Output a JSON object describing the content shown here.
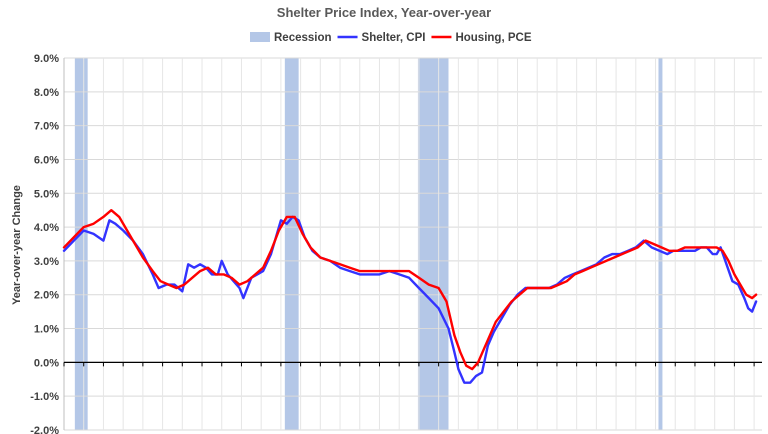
{
  "chart_data": {
    "type": "line",
    "title": "Shelter Price Index, Year-over-year",
    "ylabel": "Year-over-year Change",
    "xlabel": "",
    "ylim": [
      -2.0,
      9.0
    ],
    "yticks": [
      -2.0,
      -1.0,
      0.0,
      1.0,
      2.0,
      3.0,
      4.0,
      5.0,
      6.0,
      7.0,
      8.0,
      9.0
    ],
    "ytick_labels": [
      "-2.0%",
      "-1.0%",
      "0.0%",
      "1.0%",
      "2.0%",
      "3.0%",
      "4.0%",
      "5.0%",
      "6.0%",
      "7.0%",
      "8.0%",
      "9.0%"
    ],
    "xlim": [
      1990,
      2025.4
    ],
    "grid": true,
    "legend_position": "top-center",
    "legend": [
      {
        "name": "Recession",
        "kind": "band",
        "color": "#b4c7e7"
      },
      {
        "name": "Shelter, CPI",
        "kind": "line",
        "color": "#3333ff"
      },
      {
        "name": "Housing, PCE",
        "kind": "line",
        "color": "#ff0000"
      }
    ],
    "recessions": [
      [
        1990.55,
        1991.2
      ],
      [
        2001.2,
        2001.9
      ],
      [
        2007.95,
        2009.5
      ],
      [
        2020.15,
        2020.35
      ]
    ],
    "series": [
      {
        "name": "Shelter, CPI",
        "color": "#3333ff",
        "points": [
          [
            1990.0,
            3.3
          ],
          [
            1990.5,
            3.6
          ],
          [
            1991.0,
            3.9
          ],
          [
            1991.5,
            3.8
          ],
          [
            1992.0,
            3.6
          ],
          [
            1992.3,
            4.2
          ],
          [
            1992.6,
            4.1
          ],
          [
            1993.0,
            3.9
          ],
          [
            1993.5,
            3.6
          ],
          [
            1994.0,
            3.2
          ],
          [
            1994.5,
            2.6
          ],
          [
            1994.8,
            2.2
          ],
          [
            1995.2,
            2.3
          ],
          [
            1995.6,
            2.3
          ],
          [
            1996.0,
            2.1
          ],
          [
            1996.3,
            2.9
          ],
          [
            1996.6,
            2.8
          ],
          [
            1996.9,
            2.9
          ],
          [
            1997.2,
            2.8
          ],
          [
            1997.5,
            2.6
          ],
          [
            1997.8,
            2.6
          ],
          [
            1998.0,
            3.0
          ],
          [
            1998.3,
            2.6
          ],
          [
            1998.6,
            2.4
          ],
          [
            1998.9,
            2.2
          ],
          [
            1999.1,
            1.9
          ],
          [
            1999.5,
            2.5
          ],
          [
            1999.8,
            2.6
          ],
          [
            2000.1,
            2.7
          ],
          [
            2000.5,
            3.2
          ],
          [
            2000.8,
            3.8
          ],
          [
            2001.0,
            4.2
          ],
          [
            2001.3,
            4.1
          ],
          [
            2001.6,
            4.3
          ],
          [
            2001.9,
            4.2
          ],
          [
            2002.2,
            3.7
          ],
          [
            2002.6,
            3.3
          ],
          [
            2003.0,
            3.1
          ],
          [
            2003.5,
            3.0
          ],
          [
            2004.0,
            2.8
          ],
          [
            2004.5,
            2.7
          ],
          [
            2005.0,
            2.6
          ],
          [
            2005.5,
            2.6
          ],
          [
            2006.0,
            2.6
          ],
          [
            2006.5,
            2.7
          ],
          [
            2007.0,
            2.6
          ],
          [
            2007.5,
            2.5
          ],
          [
            2008.0,
            2.2
          ],
          [
            2008.5,
            1.9
          ],
          [
            2009.0,
            1.6
          ],
          [
            2009.5,
            1.0
          ],
          [
            2009.8,
            0.3
          ],
          [
            2010.0,
            -0.2
          ],
          [
            2010.3,
            -0.6
          ],
          [
            2010.6,
            -0.6
          ],
          [
            2010.9,
            -0.4
          ],
          [
            2011.2,
            -0.3
          ],
          [
            2011.5,
            0.5
          ],
          [
            2011.8,
            0.9
          ],
          [
            2012.2,
            1.3
          ],
          [
            2012.6,
            1.7
          ],
          [
            2013.0,
            2.0
          ],
          [
            2013.4,
            2.2
          ],
          [
            2013.8,
            2.2
          ],
          [
            2014.2,
            2.2
          ],
          [
            2014.6,
            2.2
          ],
          [
            2015.0,
            2.3
          ],
          [
            2015.4,
            2.5
          ],
          [
            2015.8,
            2.6
          ],
          [
            2016.2,
            2.7
          ],
          [
            2016.6,
            2.8
          ],
          [
            2017.0,
            2.9
          ],
          [
            2017.4,
            3.1
          ],
          [
            2017.8,
            3.2
          ],
          [
            2018.2,
            3.2
          ],
          [
            2018.6,
            3.3
          ],
          [
            2019.0,
            3.4
          ],
          [
            2019.4,
            3.6
          ],
          [
            2019.8,
            3.4
          ],
          [
            2020.2,
            3.3
          ],
          [
            2020.6,
            3.2
          ],
          [
            2020.9,
            3.3
          ],
          [
            2021.2,
            3.3
          ],
          [
            2021.6,
            3.3
          ],
          [
            2022.0,
            3.3
          ],
          [
            2022.3,
            3.4
          ],
          [
            2022.6,
            3.4
          ],
          [
            2022.9,
            3.2
          ],
          [
            2023.1,
            3.2
          ],
          [
            2023.3,
            3.4
          ],
          [
            2023.6,
            2.9
          ],
          [
            2023.9,
            2.4
          ],
          [
            2024.2,
            2.3
          ],
          [
            2024.5,
            1.9
          ],
          [
            2024.7,
            1.6
          ],
          [
            2024.9,
            1.5
          ],
          [
            2025.1,
            1.8
          ]
        ]
      },
      {
        "name": "Housing, PCE",
        "color": "#ff0000",
        "points": [
          [
            1990.0,
            3.4
          ],
          [
            1990.5,
            3.7
          ],
          [
            1991.0,
            4.0
          ],
          [
            1991.5,
            4.1
          ],
          [
            1992.0,
            4.3
          ],
          [
            1992.4,
            4.5
          ],
          [
            1992.8,
            4.3
          ],
          [
            1993.2,
            3.9
          ],
          [
            1993.6,
            3.5
          ],
          [
            1994.0,
            3.1
          ],
          [
            1994.5,
            2.7
          ],
          [
            1994.9,
            2.4
          ],
          [
            1995.3,
            2.3
          ],
          [
            1995.7,
            2.2
          ],
          [
            1996.1,
            2.3
          ],
          [
            1996.5,
            2.5
          ],
          [
            1996.9,
            2.7
          ],
          [
            1997.3,
            2.8
          ],
          [
            1997.7,
            2.6
          ],
          [
            1998.1,
            2.6
          ],
          [
            1998.5,
            2.5
          ],
          [
            1998.9,
            2.3
          ],
          [
            1999.3,
            2.4
          ],
          [
            1999.7,
            2.6
          ],
          [
            2000.1,
            2.8
          ],
          [
            2000.5,
            3.3
          ],
          [
            2000.9,
            3.9
          ],
          [
            2001.3,
            4.3
          ],
          [
            2001.7,
            4.3
          ],
          [
            2002.1,
            3.8
          ],
          [
            2002.5,
            3.4
          ],
          [
            2003.0,
            3.1
          ],
          [
            2003.5,
            3.0
          ],
          [
            2004.0,
            2.9
          ],
          [
            2004.5,
            2.8
          ],
          [
            2005.0,
            2.7
          ],
          [
            2005.5,
            2.7
          ],
          [
            2006.0,
            2.7
          ],
          [
            2006.5,
            2.7
          ],
          [
            2007.0,
            2.7
          ],
          [
            2007.5,
            2.7
          ],
          [
            2008.0,
            2.5
          ],
          [
            2008.5,
            2.3
          ],
          [
            2009.0,
            2.2
          ],
          [
            2009.4,
            1.8
          ],
          [
            2009.8,
            0.8
          ],
          [
            2010.1,
            0.3
          ],
          [
            2010.4,
            -0.1
          ],
          [
            2010.7,
            -0.2
          ],
          [
            2011.0,
            0.0
          ],
          [
            2011.3,
            0.4
          ],
          [
            2011.6,
            0.8
          ],
          [
            2011.9,
            1.2
          ],
          [
            2012.3,
            1.5
          ],
          [
            2012.7,
            1.8
          ],
          [
            2013.1,
            2.0
          ],
          [
            2013.5,
            2.2
          ],
          [
            2013.9,
            2.2
          ],
          [
            2014.3,
            2.2
          ],
          [
            2014.7,
            2.2
          ],
          [
            2015.1,
            2.3
          ],
          [
            2015.5,
            2.4
          ],
          [
            2015.9,
            2.6
          ],
          [
            2016.3,
            2.7
          ],
          [
            2016.7,
            2.8
          ],
          [
            2017.1,
            2.9
          ],
          [
            2017.5,
            3.0
          ],
          [
            2017.9,
            3.1
          ],
          [
            2018.3,
            3.2
          ],
          [
            2018.7,
            3.3
          ],
          [
            2019.1,
            3.4
          ],
          [
            2019.5,
            3.6
          ],
          [
            2019.9,
            3.5
          ],
          [
            2020.3,
            3.4
          ],
          [
            2020.7,
            3.3
          ],
          [
            2021.1,
            3.3
          ],
          [
            2021.5,
            3.4
          ],
          [
            2021.9,
            3.4
          ],
          [
            2022.3,
            3.4
          ],
          [
            2022.7,
            3.4
          ],
          [
            2023.1,
            3.4
          ],
          [
            2023.4,
            3.3
          ],
          [
            2023.7,
            3.0
          ],
          [
            2024.0,
            2.6
          ],
          [
            2024.3,
            2.3
          ],
          [
            2024.6,
            2.0
          ],
          [
            2024.9,
            1.9
          ],
          [
            2025.1,
            2.0
          ]
        ]
      }
    ]
  }
}
